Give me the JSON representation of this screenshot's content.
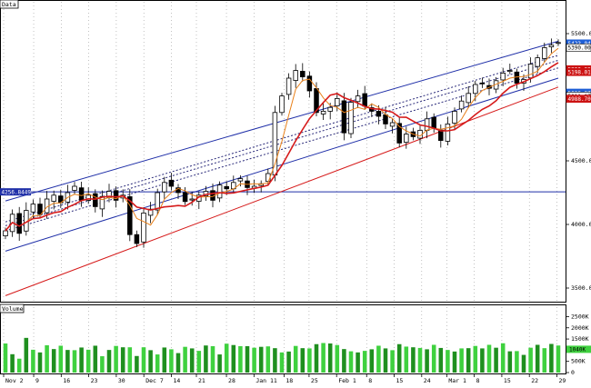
{
  "panels": {
    "price": {
      "label": "Data"
    },
    "volume": {
      "label": "Volume"
    }
  },
  "price_axis": [
    {
      "value": 5500,
      "label": "5500.00"
    },
    {
      "value": 4500,
      "label": "4500.00"
    },
    {
      "value": 4000,
      "label": "4000.00"
    },
    {
      "value": 3500,
      "label": "3500.00"
    }
  ],
  "price_badges": [
    {
      "value": 5423,
      "label": "5423.04",
      "color": "#1f5fd6"
    },
    {
      "value": 5390,
      "label": "5390.00",
      "color": "#ffffff"
    },
    {
      "value": 5220,
      "label": "5220.03",
      "color": "#cc1111"
    },
    {
      "value": 5198,
      "label": "5198.01",
      "color": "#cc1111"
    },
    {
      "value": 5036,
      "label": "5036.07",
      "color": "#1f5fd6"
    },
    {
      "value": 5011,
      "label": "5011.07",
      "color": "#ffffff"
    },
    {
      "value": 4988,
      "label": "4988.70",
      "color": "#cc1111"
    }
  ],
  "hline": {
    "value": 4256,
    "label": "4256.8449",
    "color": "#1f2fa8"
  },
  "volume_axis": [
    {
      "value": 2500,
      "label": "2500K"
    },
    {
      "value": 2000,
      "label": "2000K"
    },
    {
      "value": 1500,
      "label": "1500K"
    },
    {
      "value": 1000,
      "label": "1000K"
    },
    {
      "value": 500,
      "label": "500K"
    },
    {
      "value": 0,
      "label": "0"
    }
  ],
  "volume_badge": {
    "value": 1040,
    "label": "1040K"
  },
  "x_axis": [
    {
      "index": 0,
      "label": "Nov 2"
    },
    {
      "index": 12,
      "label": "9"
    },
    {
      "index": 23,
      "label": "16"
    },
    {
      "index": 34,
      "label": "23"
    },
    {
      "index": 45,
      "label": "30"
    },
    {
      "index": 56,
      "label": "Dec 7"
    },
    {
      "index": 67,
      "label": "14"
    },
    {
      "index": 77,
      "label": "21"
    },
    {
      "index": 89,
      "label": "28"
    },
    {
      "index": 100,
      "label": "Jan 11"
    },
    {
      "index": 112,
      "label": "18"
    },
    {
      "index": 122,
      "label": "25"
    },
    {
      "index": 133,
      "label": "Feb 1"
    },
    {
      "index": 145,
      "label": "8"
    },
    {
      "index": 156,
      "label": "15"
    },
    {
      "index": 167,
      "label": "24"
    },
    {
      "index": 177,
      "label": "Mar 1"
    },
    {
      "index": 188,
      "label": "8"
    },
    {
      "index": 199,
      "label": "15"
    },
    {
      "index": 210,
      "label": "22"
    },
    {
      "index": 221,
      "label": "29"
    }
  ],
  "chart_data": {
    "type": "candlestick",
    "ylim": [
      3400,
      5750
    ],
    "volume_ylim": [
      0,
      2600
    ],
    "x_count": 224,
    "closes": [
      3950,
      4080,
      3930,
      4110,
      4160,
      4080,
      4200,
      4230,
      4170,
      4250,
      4300,
      4190,
      4230,
      4140,
      4220,
      4260,
      4190,
      4230,
      3920,
      3850,
      4090,
      4120,
      4250,
      4330,
      4300,
      4250,
      4180,
      4200,
      4230,
      4260,
      4190,
      4310,
      4280,
      4330,
      4360,
      4290,
      4300,
      4320,
      4400,
      4880,
      5010,
      5150,
      5210,
      5160,
      5050,
      4880,
      4890,
      4920,
      4990,
      4720,
      4960,
      5010,
      4930,
      4890,
      4850,
      4790,
      4800,
      4640,
      4710,
      4690,
      4740,
      4830,
      4760,
      4660,
      4790,
      4890,
      4970,
      5030,
      5100,
      5110,
      5070,
      5130,
      5190,
      5210,
      5110,
      5140,
      5260,
      5310,
      5390,
      5410,
      5430
    ],
    "volumes": [
      1300,
      820,
      620,
      1550,
      1020,
      900,
      1220,
      1050,
      1200,
      1010,
      1000,
      1120,
      1020,
      1200,
      730,
      1010,
      1190,
      1130,
      1130,
      740,
      1130,
      1000,
      810,
      1120,
      1040,
      870,
      1150,
      1080,
      970,
      1210,
      1180,
      810,
      1290,
      1230,
      1180,
      1180,
      1110,
      1150,
      1170,
      1090,
      900,
      940,
      1190,
      1090,
      1080,
      1270,
      1320,
      1300,
      1230,
      1050,
      950,
      900,
      970,
      1040,
      1200,
      1080,
      1000,
      1270,
      1160,
      1130,
      1100,
      1040,
      1240,
      1100,
      1010,
      940,
      1080,
      1090,
      1190,
      1080,
      1240,
      1110,
      1310,
      950,
      960,
      790,
      1110,
      1240,
      1090,
      1280,
      1210
    ]
  }
}
